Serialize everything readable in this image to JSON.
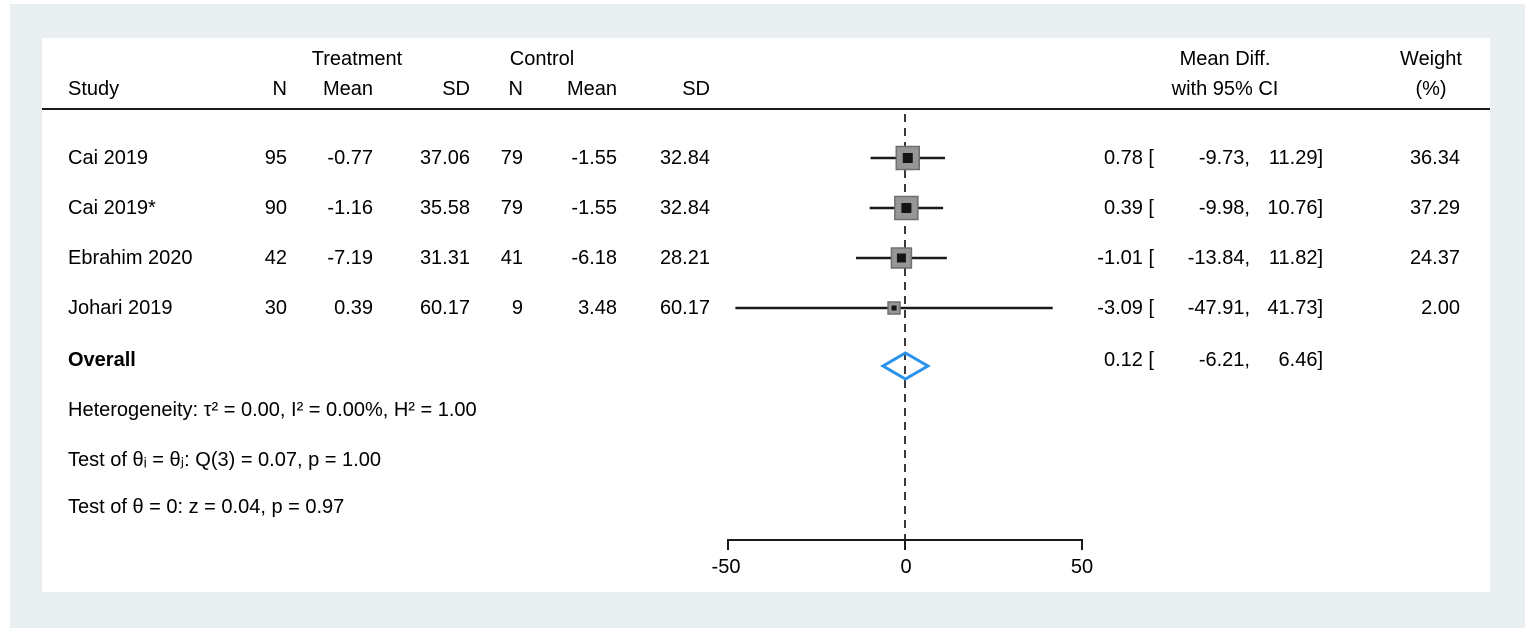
{
  "table": {
    "group_headers": {
      "treatment": "Treatment",
      "control": "Control"
    },
    "col_headers": {
      "study": "Study",
      "n_t": "N",
      "mean_t": "Mean",
      "sd_t": "SD",
      "n_c": "N",
      "mean_c": "Mean",
      "sd_c": "SD",
      "mean_diff_line1": "Mean Diff.",
      "mean_diff_line2": "with 95% CI",
      "weight_line1": "Weight",
      "weight_line2": "(%)"
    },
    "rows": [
      {
        "study": "Cai 2019",
        "n_t": "95",
        "mean_t": "-0.77",
        "sd_t": "37.06",
        "n_c": "79",
        "mean_c": "-1.55",
        "sd_c": "32.84",
        "est": "0.78 [",
        "lo": "-9.73,",
        "hi": "11.29]",
        "weight": "36.34"
      },
      {
        "study": "Cai 2019*",
        "n_t": "90",
        "mean_t": "-1.16",
        "sd_t": "35.58",
        "n_c": "79",
        "mean_c": "-1.55",
        "sd_c": "32.84",
        "est": "0.39 [",
        "lo": "-9.98,",
        "hi": "10.76]",
        "weight": "37.29"
      },
      {
        "study": "Ebrahim 2020",
        "n_t": "42",
        "mean_t": "-7.19",
        "sd_t": "31.31",
        "n_c": "41",
        "mean_c": "-6.18",
        "sd_c": "28.21",
        "est": "-1.01 [",
        "lo": "-13.84,",
        "hi": "11.82]",
        "weight": "24.37"
      },
      {
        "study": "Johari 2019",
        "n_t": "30",
        "mean_t": "0.39",
        "sd_t": "60.17",
        "n_c": "9",
        "mean_c": "3.48",
        "sd_c": "60.17",
        "est": "-3.09 [",
        "lo": "-47.91,",
        "hi": "41.73]",
        "weight": "2.00"
      }
    ],
    "overall": {
      "label": "Overall",
      "est": "0.12 [",
      "lo": "-6.21,",
      "hi": "6.46]"
    },
    "stats": {
      "heterogeneity": "Heterogeneity: τ² = 0.00, I² = 0.00%, H² = 1.00",
      "test_q": "Test of θᵢ = θⱼ: Q(3) = 0.07, p = 1.00",
      "test_z": "Test of θ = 0: z = 0.04, p = 0.97"
    },
    "axis_labels": {
      "t0": "-50",
      "t1": "0",
      "t2": "50"
    }
  },
  "chart_data": {
    "type": "forest",
    "x_range": [
      -50,
      50
    ],
    "x_ticks": [
      -50,
      0,
      50
    ],
    "null_value": 0,
    "studies": [
      {
        "name": "Cai 2019",
        "effect": 0.78,
        "ci_low": -9.73,
        "ci_high": 11.29,
        "weight": 36.34
      },
      {
        "name": "Cai 2019*",
        "effect": 0.39,
        "ci_low": -9.98,
        "ci_high": 10.76,
        "weight": 37.29
      },
      {
        "name": "Ebrahim 2020",
        "effect": -1.01,
        "ci_low": -13.84,
        "ci_high": 11.82,
        "weight": 24.37
      },
      {
        "name": "Johari 2019",
        "effect": -3.09,
        "ci_low": -47.91,
        "ci_high": 41.73,
        "weight": 2.0
      }
    ],
    "overall": {
      "effect": 0.12,
      "ci_low": -6.21,
      "ci_high": 6.46
    },
    "colors": {
      "marker_fill": "#969696",
      "marker_border": "#6f6f6f",
      "marker_inner": "#141414",
      "ci_line": "#1a1a1a",
      "null_line": "#3a3a3a",
      "diamond": "#2b93ec",
      "axis": "#1a1a1a",
      "background": "#e9eff1"
    }
  }
}
